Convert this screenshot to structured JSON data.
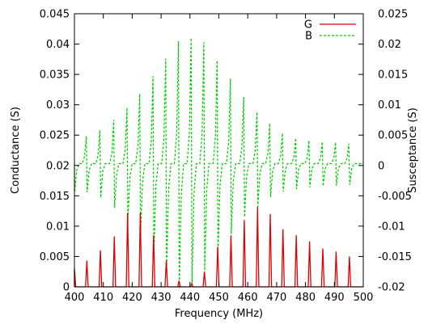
{
  "chart_data": {
    "type": "line",
    "title": "",
    "xlabel": "Frequency (MHz)",
    "ylabel_left": "Conductance (S)",
    "ylabel_right": "Susceptance (S)",
    "xlim": [
      400,
      500
    ],
    "ylim_left": [
      0,
      0.045
    ],
    "ylim_right": [
      -0.02,
      0.025
    ],
    "x_ticks": [
      "400",
      "410",
      "420",
      "430",
      "440",
      "450",
      "460",
      "470",
      "480",
      "490",
      "500"
    ],
    "y_left_ticks": [
      "0",
      "0.005",
      "0.01",
      "0.015",
      "0.02",
      "0.025",
      "0.03",
      "0.035",
      "0.04",
      "0.045"
    ],
    "y_right_ticks": [
      "-0.02",
      "-0.015",
      "-0.01",
      "-0.005",
      "0",
      "0.005",
      "0.01",
      "0.015",
      "0.02",
      "0.025"
    ],
    "legend_position": "top-right",
    "resonances": [
      400.0,
      404.3,
      409.0,
      413.8,
      418.4,
      422.8,
      427.4,
      431.8,
      436.2,
      440.6,
      445.0,
      449.6,
      454.2,
      458.8,
      463.4,
      467.8,
      472.2,
      476.8,
      481.4,
      486.0,
      490.6,
      495.2
    ],
    "series": [
      {
        "name": "G",
        "color": "#e00000",
        "axis": "left",
        "style": "solid",
        "peaks": [
          0.003,
          0.0043,
          0.006,
          0.0083,
          0.0122,
          0.0122,
          0.0085,
          0.0043,
          0.001,
          0.0005,
          0.0025,
          0.0066,
          0.0085,
          0.011,
          0.0132,
          0.012,
          0.0095,
          0.0085,
          0.0075,
          0.0063,
          0.0058,
          0.005
        ],
        "baseline": 0
      },
      {
        "name": "B",
        "color": "#00cc00",
        "axis": "right",
        "style": "dashed",
        "baseline": 0.0003,
        "max": [
          0.0045,
          0.0048,
          0.0058,
          0.0075,
          0.0095,
          0.0118,
          0.0147,
          0.0176,
          0.0205,
          0.021,
          0.0203,
          0.0173,
          0.0143,
          0.0113,
          0.0088,
          0.0069,
          0.0053,
          0.0045,
          0.0041,
          0.0039,
          0.0038,
          0.0036
        ],
        "min": [
          -0.0043,
          -0.0044,
          -0.0053,
          -0.007,
          -0.009,
          -0.0115,
          -0.0145,
          -0.0173,
          -0.0203,
          -0.0198,
          -0.0173,
          -0.0144,
          -0.0113,
          -0.0085,
          -0.0068,
          -0.0052,
          -0.0043,
          -0.0039,
          -0.0036,
          -0.0034,
          -0.0033,
          -0.0032
        ]
      }
    ]
  }
}
